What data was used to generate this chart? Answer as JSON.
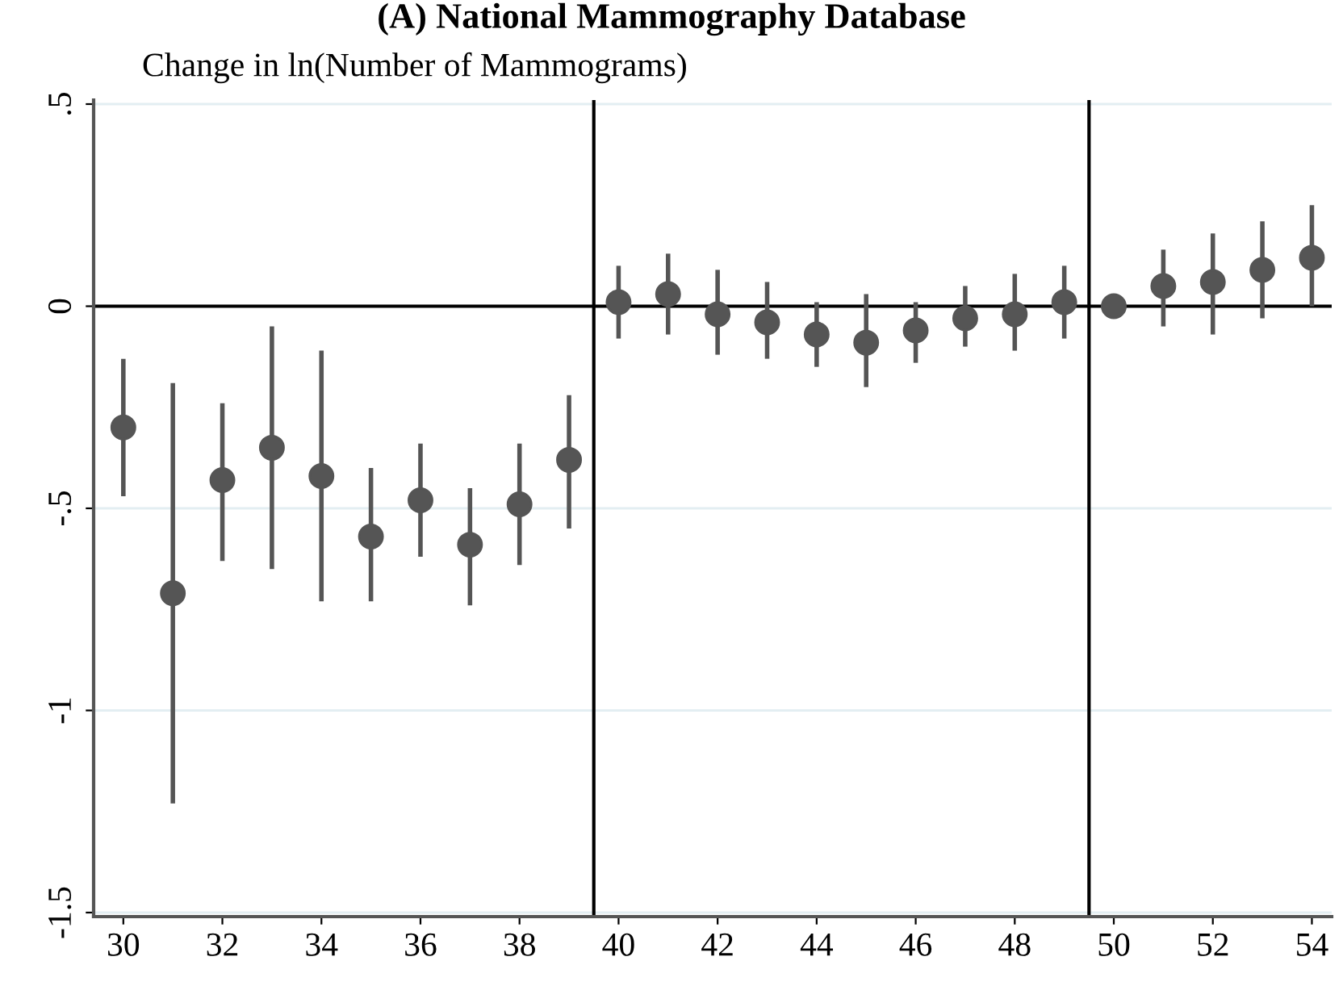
{
  "chart_data": {
    "type": "scatter",
    "title": "(A) National Mammography Database",
    "ylabel": "Change in ln(Number of Mammograms)",
    "x": [
      30,
      31,
      32,
      33,
      34,
      35,
      36,
      37,
      38,
      39,
      40,
      41,
      42,
      43,
      44,
      45,
      46,
      47,
      48,
      49,
      50,
      51,
      52,
      53,
      54
    ],
    "series": [
      {
        "color": "#555555",
        "values": [
          -0.3,
          -0.71,
          -0.43,
          -0.35,
          -0.42,
          -0.57,
          -0.48,
          -0.59,
          -0.49,
          -0.38,
          0.01,
          0.03,
          -0.02,
          -0.04,
          -0.07,
          -0.09,
          -0.06,
          -0.03,
          -0.02,
          0.01,
          0.0,
          0.05,
          0.06,
          0.09,
          0.12
        ],
        "errors": [
          [
            -0.47,
            -0.13
          ],
          [
            -1.23,
            -0.19
          ],
          [
            -0.63,
            -0.24
          ],
          [
            -0.65,
            -0.05
          ],
          [
            -0.73,
            -0.11
          ],
          [
            -0.73,
            -0.4
          ],
          [
            -0.62,
            -0.34
          ],
          [
            -0.74,
            -0.45
          ],
          [
            -0.64,
            -0.34
          ],
          [
            -0.55,
            -0.22
          ],
          [
            -0.08,
            0.1
          ],
          [
            -0.07,
            0.13
          ],
          [
            -0.12,
            0.09
          ],
          [
            -0.13,
            0.06
          ],
          [
            -0.15,
            0.01
          ],
          [
            -0.2,
            0.03
          ],
          [
            -0.14,
            0.01
          ],
          [
            -0.1,
            0.05
          ],
          [
            -0.11,
            0.08
          ],
          [
            -0.08,
            0.1
          ],
          null,
          [
            -0.05,
            0.14
          ],
          [
            -0.07,
            0.18
          ],
          [
            -0.03,
            0.21
          ],
          [
            0.0,
            0.25
          ]
        ]
      }
    ],
    "xlim": [
      29.4,
      54.4
    ],
    "xticks": [
      30,
      32,
      34,
      36,
      38,
      40,
      42,
      44,
      46,
      48,
      50,
      52,
      54
    ],
    "ylim": [
      -1.51,
      0.51
    ],
    "yticks": [
      {
        "value": 0.5,
        "label": ".5"
      },
      0,
      {
        "value": -0.5,
        "label": "-.5"
      },
      -1,
      {
        "value": -1.5,
        "label": "-1.5"
      }
    ],
    "ref_lines": [
      {
        "axis": "y",
        "value": 0,
        "color": "#000000"
      },
      {
        "axis": "x",
        "value": 39.5,
        "color": "#000000"
      },
      {
        "axis": "x",
        "value": 49.5,
        "color": "#000000"
      }
    ],
    "grid": "y",
    "marker": "circle"
  }
}
